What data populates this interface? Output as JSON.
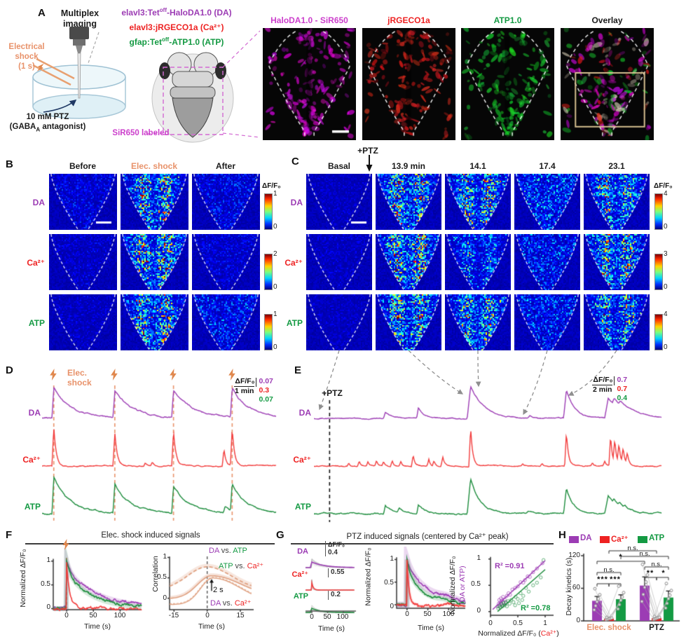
{
  "colors": {
    "da": "#9c3cb4",
    "ca": "#ee2222",
    "atp": "#149a43",
    "shock_orange": "#e8926a",
    "corr_tan": "#dfa080",
    "magenta": "#cc3fcc",
    "jet_bg": "#1b2a80",
    "overlay_box": "#dec796",
    "gray_dash": "#999999"
  },
  "panel_a": {
    "label": "A",
    "multiplex_line1": "Multiplex",
    "multiplex_line2": "imaging",
    "shock_line1": "Electrical",
    "shock_line2": "shock",
    "shock_line3": "(1 s)",
    "ptz_line1": "10 mM PTZ",
    "gaba_pre": "(GABA",
    "gaba_sub": "A",
    "gaba_post": " antagonist)",
    "genotypes": [
      {
        "pre": "elavl3:Tet",
        "sup": "off",
        "post": "-HaloDA1.0 (DA)"
      },
      {
        "pre": "elavl3:jRGECO1a (Ca²⁺)",
        "sup": "",
        "post": ""
      },
      {
        "pre": "gfap:Tet",
        "sup": "off",
        "post": "-ATP1.0 (ATP)"
      }
    ],
    "sir650": "SiR650 labeled",
    "images": [
      {
        "title": "HaloDA1.0 - SiR650"
      },
      {
        "title": "jRGECO1a"
      },
      {
        "title": "ATP1.0"
      },
      {
        "title": "Overlay"
      }
    ]
  },
  "panel_b": {
    "label": "B",
    "col_headers": [
      "Before",
      "Elec. shock",
      "After"
    ],
    "rows": [
      {
        "label": "DA",
        "cbar_max": "1",
        "cbar_min": "0",
        "levels": [
          0.12,
          0.8,
          0.15
        ]
      },
      {
        "label": "Ca²⁺",
        "cbar_max": "2",
        "cbar_min": "0",
        "levels": [
          0.08,
          0.92,
          0.1
        ]
      },
      {
        "label": "ATP",
        "cbar_max": "1",
        "cbar_min": "0",
        "levels": [
          0.07,
          0.85,
          0.2
        ]
      }
    ],
    "cbar_title": "ΔF/F₀"
  },
  "panel_c": {
    "label": "C",
    "ptz_marker": "+PTZ",
    "col_headers": [
      "Basal",
      "13.9 min",
      "14.1",
      "17.4",
      "23.1"
    ],
    "rows": [
      {
        "label": "DA",
        "cbar_max": "4",
        "cbar_min": "0",
        "levels": [
          0.06,
          0.85,
          0.8,
          0.28,
          0.75
        ]
      },
      {
        "label": "Ca²⁺",
        "cbar_max": "3",
        "cbar_min": "0",
        "levels": [
          0.07,
          0.95,
          0.4,
          0.22,
          0.85
        ]
      },
      {
        "label": "ATP",
        "cbar_max": "4",
        "cbar_min": "0",
        "levels": [
          0.06,
          0.8,
          0.75,
          0.22,
          0.7
        ]
      }
    ],
    "cbar_title": "ΔF/F₀"
  },
  "panel_d": {
    "label": "D",
    "shock_line1": "Elec.",
    "shock_line2": "shock",
    "traces": [
      {
        "label": "DA"
      },
      {
        "label": "Ca²⁺"
      },
      {
        "label": "ATP"
      }
    ],
    "scale": {
      "title": "ΔF/F₀",
      "time": "1 min",
      "values": [
        "0.07",
        "0.3",
        "0.07"
      ]
    }
  },
  "panel_e": {
    "label": "E",
    "ptz_marker": "+PTZ",
    "traces": [
      {
        "label": "DA"
      },
      {
        "label": "Ca²⁺"
      },
      {
        "label": "ATP"
      }
    ],
    "scale": {
      "title": "ΔF/F₀",
      "time": "2 min",
      "values": [
        "0.7",
        "0.7",
        "0.4"
      ]
    }
  },
  "panel_f": {
    "label": "F",
    "title": "Elec. shock induced signals",
    "left": {
      "ylabel": "Normalized ΔF/F₀",
      "yticks": [
        "1",
        "0.5",
        "0"
      ],
      "xticks": [
        "0",
        "50",
        "100"
      ],
      "xlabel": "Time (s)"
    },
    "right": {
      "ylabel": "Correlation",
      "yticks": [
        "1",
        "0.5",
        "0"
      ],
      "xticks": [
        "-15",
        "0",
        "15"
      ],
      "xlabel": "Time (s)",
      "lag": "2 s",
      "ann": [
        {
          "a": "DA",
          "mid": " vs. ",
          "b": "ATP"
        },
        {
          "a": "ATP",
          "mid": " vs. ",
          "b": "Ca²⁺"
        },
        {
          "a": "DA",
          "mid": " vs. ",
          "b": "Ca²⁺"
        }
      ]
    }
  },
  "panel_g": {
    "label": "G",
    "title": "PTZ induced signals (centered by Ca²⁺ peak)",
    "spaghetti": {
      "rows": [
        {
          "label": "DA",
          "scale": "0.4"
        },
        {
          "label": "Ca²⁺",
          "scale": "0.55"
        },
        {
          "label": "ATP",
          "scale": "0.2"
        }
      ],
      "scale_title": "ΔF/F₀",
      "xticks": [
        "0",
        "50",
        "100"
      ],
      "xlabel": "Time (s)"
    },
    "mean": {
      "ylabel": "Normalized ΔF/F₀",
      "yticks": [
        "1",
        "0.5",
        "0"
      ],
      "xticks": [
        "0",
        "50",
        "100"
      ],
      "xlabel": "Time (s)"
    },
    "scatter": {
      "ylabel1": "Normalized ΔF/F₀",
      "ylabel2": "(DA or ATP)",
      "yticks": [
        "1",
        "0.5",
        "0"
      ],
      "xticks": [
        "0",
        "0.5",
        "1"
      ],
      "xlabel_pre": "Normalized ΔF/F₀ (",
      "xlabel_ca": "Ca²⁺",
      "xlabel_post": ")",
      "r2_da": "R² =0.91",
      "r2_atp": "R² =0.78"
    }
  },
  "panel_h": {
    "label": "H",
    "legend": [
      {
        "label": "DA"
      },
      {
        "label": "Ca²⁺"
      },
      {
        "label": "ATP"
      }
    ],
    "ylabel": "Decay kinetics (s)",
    "yticks": [
      "120",
      "60",
      "0"
    ],
    "xgroups": [
      "Elec. shock",
      "PTZ"
    ],
    "sig": [
      "n.s.",
      "n.s.",
      "*",
      "n.s.",
      "n.s.",
      "**",
      "*",
      "***",
      "***"
    ]
  },
  "chart_data": [
    {
      "id": "F-left",
      "type": "line",
      "title": "Elec. shock induced signals",
      "xlabel": "Time (s)",
      "ylabel": "Normalized ΔF/F₀",
      "xlim": [
        -25,
        140
      ],
      "ylim": [
        -0.1,
        1.1
      ],
      "series": [
        {
          "name": "DA",
          "peak": 1.0,
          "decay_tau_s": 55
        },
        {
          "name": "Ca²⁺",
          "peak": 1.0,
          "decay_tau_s": 5
        },
        {
          "name": "ATP",
          "peak": 1.0,
          "decay_tau_s": 40
        }
      ]
    },
    {
      "id": "F-right",
      "type": "line",
      "xlabel": "Time (s)",
      "ylabel": "Correlation",
      "xlim": [
        -15,
        20
      ],
      "ylim": [
        -0.2,
        1.0
      ],
      "series": [
        {
          "name": "DA vs. ATP",
          "peak_corr": 0.75,
          "peak_lag_s": 0,
          "style": "dashed"
        },
        {
          "name": "ATP vs. Ca²⁺",
          "peak_corr": 0.55,
          "peak_lag_s": 2
        },
        {
          "name": "DA vs. Ca²⁺",
          "peak_corr": 0.52,
          "peak_lag_s": 2
        }
      ],
      "lag_annotation_s": 2
    },
    {
      "id": "G-mean",
      "type": "line",
      "xlabel": "Time (s)",
      "ylabel": "Normalized ΔF/F₀",
      "xlim": [
        -25,
        140
      ],
      "ylim": [
        -0.1,
        1.1
      ],
      "series": [
        {
          "name": "DA",
          "peak": 1.0,
          "decay_tau_s": 55
        },
        {
          "name": "Ca²⁺",
          "peak": 1.0,
          "decay_tau_s": 5
        },
        {
          "name": "ATP",
          "peak": 1.0,
          "decay_tau_s": 35
        }
      ]
    },
    {
      "id": "G-scatter",
      "type": "scatter",
      "xlabel": "Normalized ΔF/F₀ (Ca²⁺)",
      "ylabel": "Normalized ΔF/F₀ (DA or ATP)",
      "xlim": [
        0,
        1
      ],
      "ylim": [
        0,
        1
      ],
      "r2": [
        {
          "name": "DA",
          "r2": 0.91
        },
        {
          "name": "ATP",
          "r2": 0.78
        }
      ]
    },
    {
      "id": "H",
      "type": "bar",
      "ylabel": "Decay kinetics (s)",
      "ylim": [
        0,
        120
      ],
      "categories": [
        "Elec. shock",
        "PTZ"
      ],
      "series": [
        {
          "name": "DA",
          "values": [
            37,
            65
          ],
          "errors": [
            8,
            16
          ]
        },
        {
          "name": "Ca²⁺",
          "values": [
            4,
            5
          ],
          "errors": [
            2,
            2
          ]
        },
        {
          "name": "ATP",
          "values": [
            40,
            43
          ],
          "errors": [
            8,
            12
          ]
        }
      ]
    }
  ]
}
